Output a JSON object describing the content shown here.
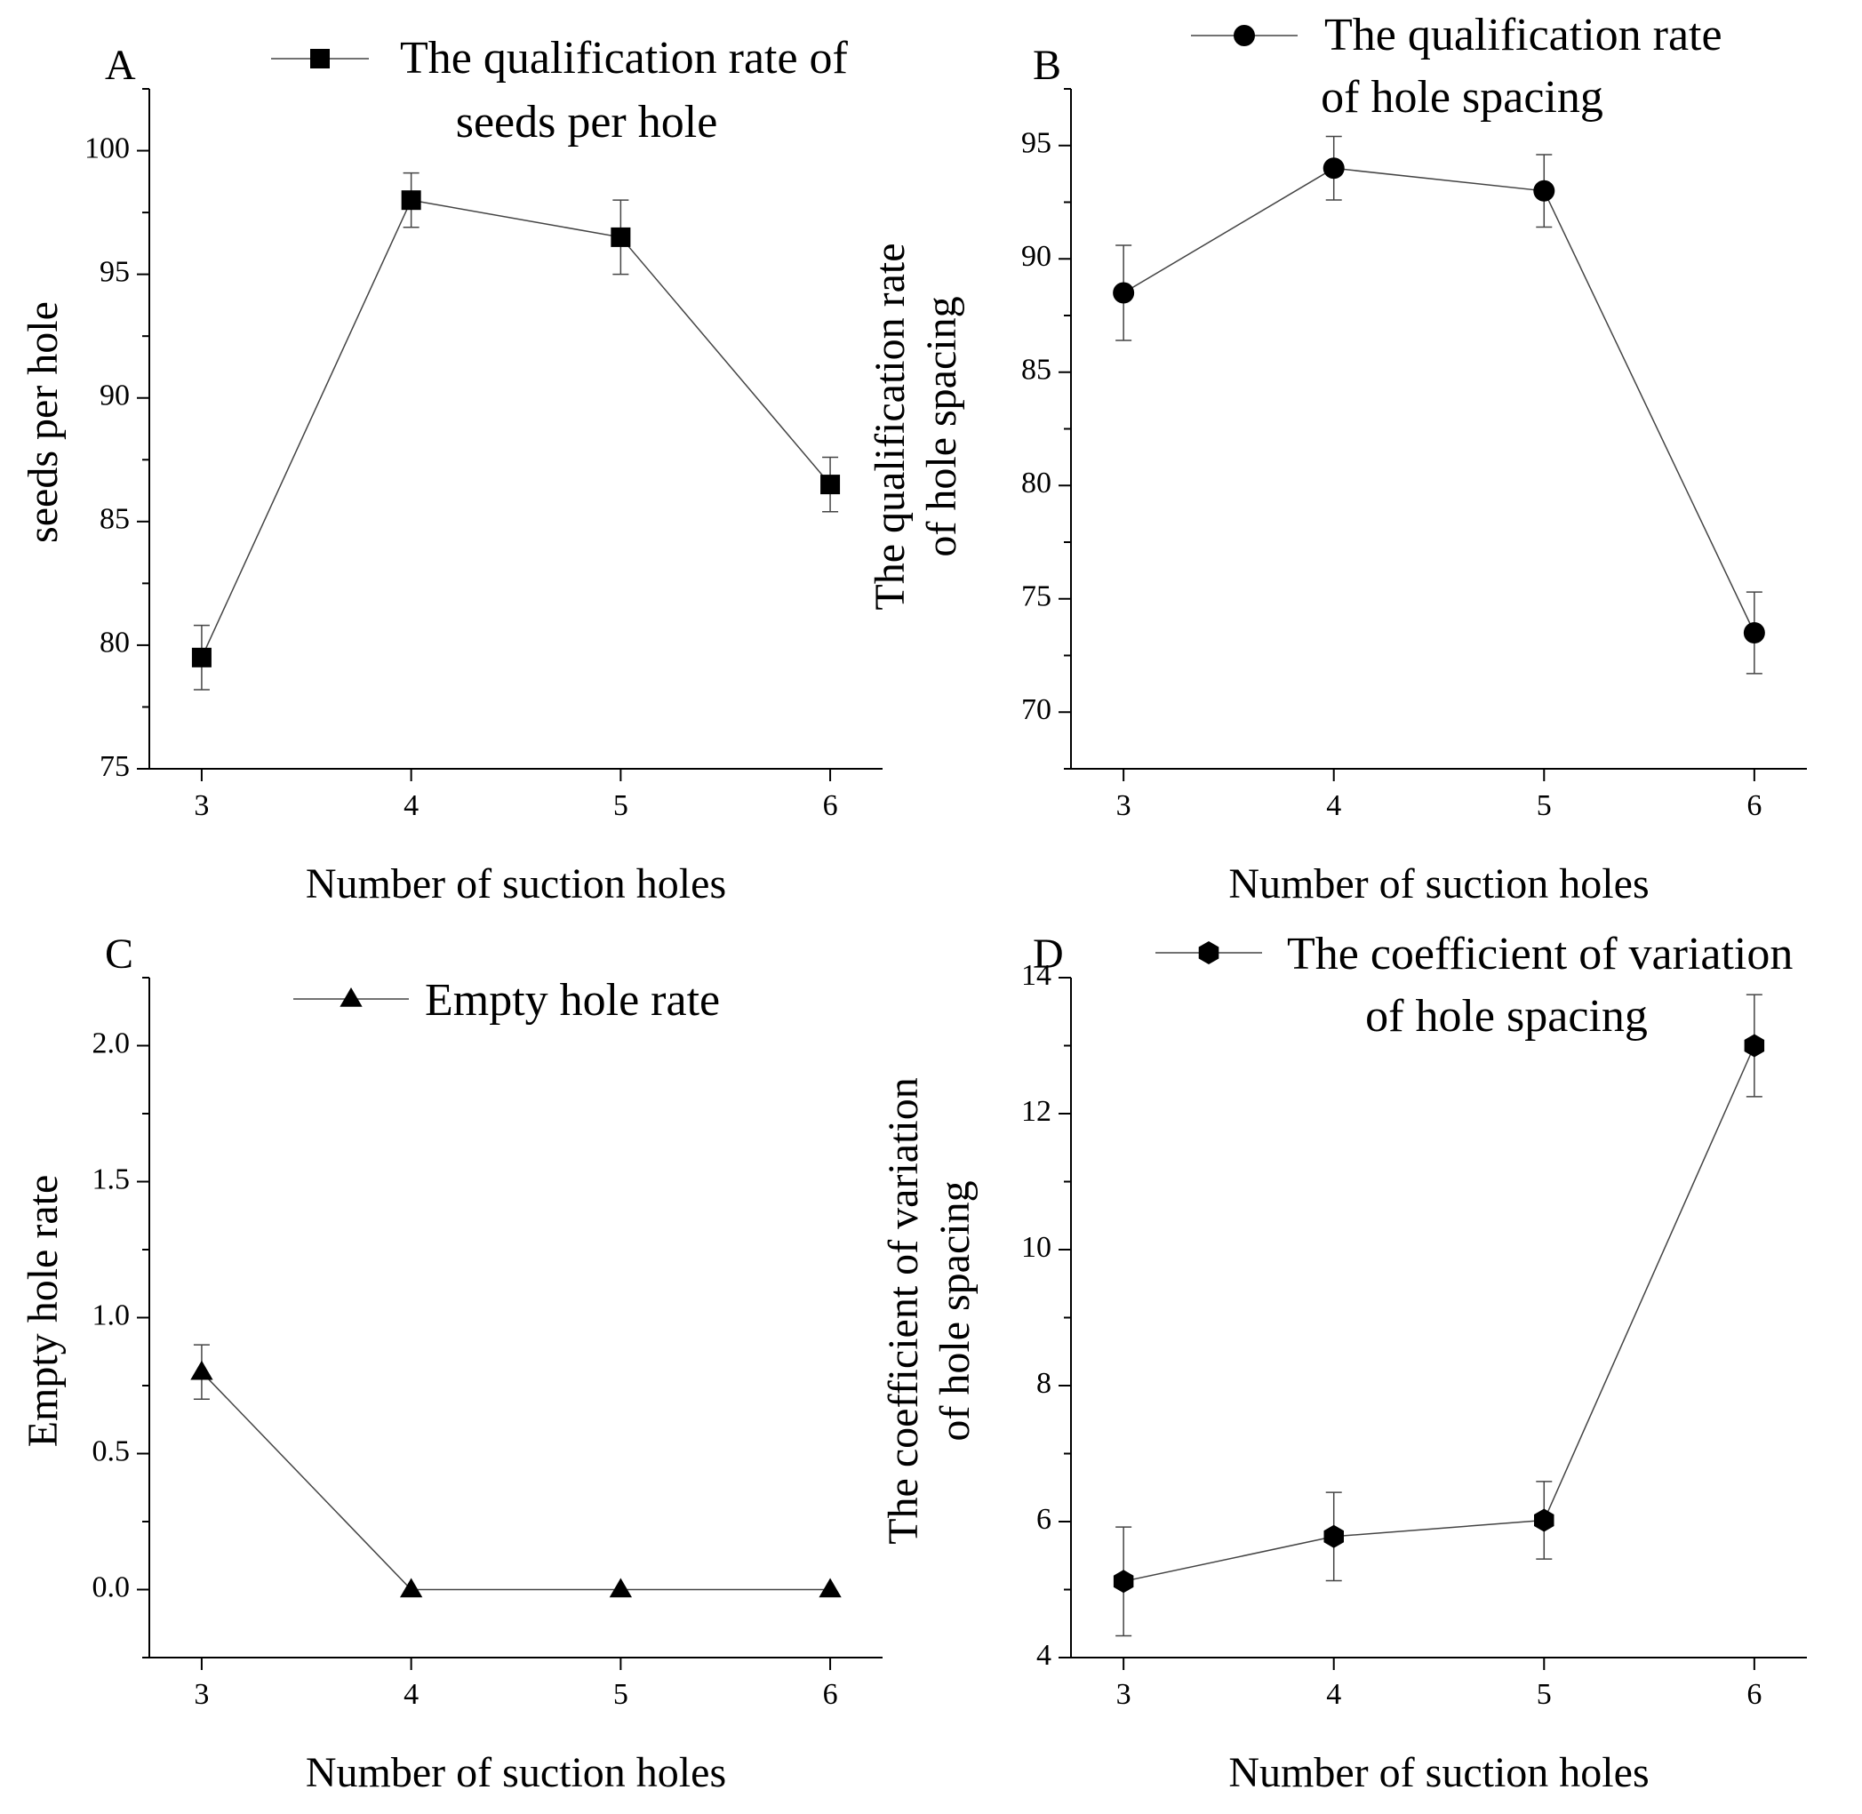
{
  "figure": {
    "colors": {
      "ink": "#000000",
      "series_line": "#444444",
      "background": "#ffffff"
    }
  },
  "chart_data": [
    {
      "panel": "A",
      "type": "line",
      "marker": "square",
      "title": "",
      "xlabel": "Number of suction holes",
      "ylabel_lines": [
        "seeds per hole"
      ],
      "legend": {
        "placement": "top-right",
        "lines": [
          "The qualification rate of",
          "seeds per hole"
        ]
      },
      "x": [
        3,
        4,
        5,
        6
      ],
      "values": [
        79.5,
        98.0,
        96.5,
        86.5
      ],
      "errors": [
        1.3,
        1.1,
        1.5,
        1.1
      ],
      "xticks": [
        3,
        4,
        5,
        6
      ],
      "yticks": [
        75,
        80,
        85,
        90,
        95,
        100
      ],
      "xlim": [
        2.75,
        6.25
      ],
      "ylim": [
        75,
        102.5
      ],
      "grid": false
    },
    {
      "panel": "B",
      "type": "line",
      "marker": "circle",
      "title": "",
      "xlabel": "Number of suction holes",
      "ylabel_lines": [
        "The qualification rate",
        "of hole spacing"
      ],
      "legend": {
        "placement": "top-right",
        "lines": [
          "The qualification rate",
          "of hole spacing"
        ]
      },
      "x": [
        3,
        4,
        5,
        6
      ],
      "values": [
        88.5,
        94.0,
        93.0,
        73.5
      ],
      "errors": [
        2.1,
        1.4,
        1.6,
        1.8
      ],
      "xticks": [
        3,
        4,
        5,
        6
      ],
      "yticks": [
        70,
        75,
        80,
        85,
        90,
        95
      ],
      "xlim": [
        2.75,
        6.25
      ],
      "ylim": [
        67.5,
        97.5
      ],
      "grid": false
    },
    {
      "panel": "C",
      "type": "line",
      "marker": "triangle",
      "title": "",
      "xlabel": "Number of suction holes",
      "ylabel_lines": [
        "Empty hole rate"
      ],
      "legend": {
        "placement": "top-right",
        "lines": [
          "Empty hole rate"
        ]
      },
      "x": [
        3,
        4,
        5,
        6
      ],
      "values": [
        0.8,
        0.0,
        0.0,
        0.0
      ],
      "errors": [
        0.1,
        0.0,
        0.0,
        0.0
      ],
      "xticks": [
        3,
        4,
        5,
        6
      ],
      "ytick_labels": [
        "0.0",
        "0.5",
        "1.0",
        "1.5",
        "2.0"
      ],
      "yticks": [
        0,
        0.5,
        1.0,
        1.5,
        2.0
      ],
      "xlim": [
        2.75,
        6.25
      ],
      "ylim": [
        -0.25,
        2.25
      ],
      "grid": false
    },
    {
      "panel": "D",
      "type": "line",
      "marker": "hexagon",
      "title": "",
      "xlabel": "Number of suction holes",
      "ylabel_lines": [
        "The coefficient of variation",
        "of hole spacing"
      ],
      "legend": {
        "placement": "top-right",
        "lines": [
          "The coefficient of variation",
          "of hole spacing"
        ]
      },
      "x": [
        3,
        4,
        5,
        6
      ],
      "values": [
        5.12,
        5.78,
        6.02,
        13.0
      ],
      "errors": [
        0.8,
        0.65,
        0.57,
        0.75
      ],
      "xticks": [
        3,
        4,
        5,
        6
      ],
      "yticks": [
        4,
        6,
        8,
        10,
        12,
        14
      ],
      "xlim": [
        2.75,
        6.25
      ],
      "ylim": [
        4,
        14
      ],
      "grid": false
    }
  ]
}
